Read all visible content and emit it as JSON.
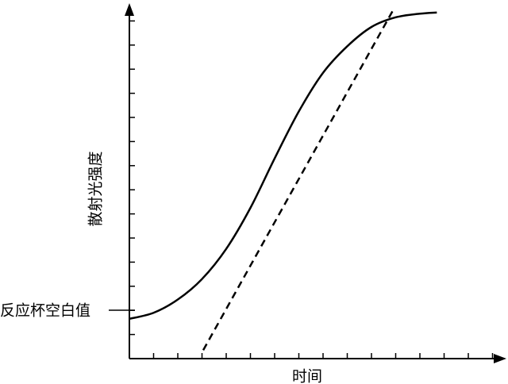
{
  "chart_data": {
    "type": "line",
    "title": "",
    "xlabel": "时间",
    "ylabel": "散射光强度",
    "annotations": [
      {
        "text": "反应杯空白值",
        "target": "y-axis-value",
        "y": 1.6
      }
    ],
    "x_ticks": 15,
    "y_ticks": 14,
    "xlim": [
      0,
      15.4
    ],
    "ylim": [
      0,
      15
    ],
    "grid": false,
    "legend": "none",
    "series": [
      {
        "name": "",
        "style": "solid",
        "x": [
          0,
          1,
          2,
          3,
          4,
          5,
          6,
          7,
          8,
          9,
          10,
          11,
          12,
          12.7
        ],
        "y": [
          1.65,
          1.9,
          2.45,
          3.3,
          4.55,
          6.25,
          8.3,
          10.25,
          11.85,
          12.95,
          13.75,
          14.15,
          14.3,
          14.35
        ]
      },
      {
        "name": "",
        "style": "dashed",
        "x": [
          3.05,
          10.95
        ],
        "y": [
          0.35,
          14.55
        ]
      }
    ]
  }
}
